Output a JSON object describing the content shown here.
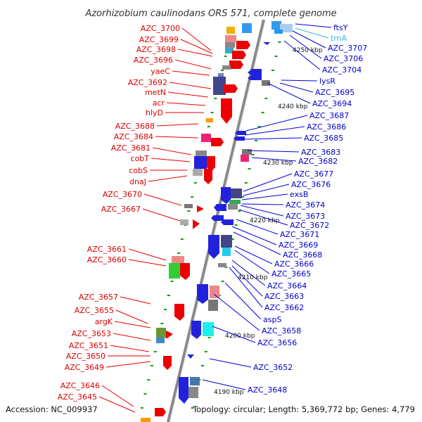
{
  "title": "Azorhizobium caulinodans ORS 571, complete genome",
  "footer": {
    "accession": "Accession: NC_009937",
    "summary": "Topology: circular; Length: 5,369,772 bp; Genes: 4,779"
  },
  "axis": {
    "unit": "kbp",
    "ticks": [
      4250,
      4240,
      4230,
      4220,
      4210,
      4200,
      4190
    ],
    "tick_labels": [
      "4250 kbp",
      "4240 kbp",
      "4230 kbp",
      "4220 kbp",
      "4210 kbp",
      "4200 kbp",
      "4190 kbp"
    ]
  },
  "left_labels": [
    "AZC_3700",
    "AZC_3699",
    "AZC_3698",
    "AZC_3696",
    "yaeC",
    "AZC_3692",
    "metN",
    "acr",
    "hlyD",
    "AZC_3688",
    "AZC_3684",
    "AZC_3681",
    "cobT",
    "cobS",
    "dnaJ",
    "AZC_3670",
    "AZC_3667",
    "AZC_3661",
    "AZC_3660",
    "AZC_3657",
    "AZC_3655",
    "argK",
    "AZC_3653",
    "AZC_3651",
    "AZC_3650",
    "AZC_3649",
    "AZC_3646",
    "AZC_3645"
  ],
  "right_labels": [
    "ftsY",
    "trnA",
    "AZC_3707",
    "AZC_3706",
    "AZC_3704",
    "lysR",
    "AZC_3695",
    "AZC_3694",
    "AZC_3687",
    "AZC_3686",
    "AZC_3685",
    "AZC_3683",
    "AZC_3682",
    "AZC_3677",
    "AZC_3676",
    "exsB",
    "AZC_3674",
    "AZC_3673",
    "AZC_3672",
    "AZC_3671",
    "AZC_3669",
    "AZC_3668",
    "AZC_3666",
    "AZC_3665",
    "AZC_3664",
    "AZC_3663",
    "AZC_3662",
    "aspS",
    "AZC_3658",
    "AZC_3656",
    "AZC_3652",
    "AZC_3648"
  ],
  "colors": {
    "forward_strand": "#ee0000",
    "reverse_strand": "#0000dd",
    "rna": "#33bbee",
    "backbone": "#888888",
    "tick": "#119911"
  }
}
